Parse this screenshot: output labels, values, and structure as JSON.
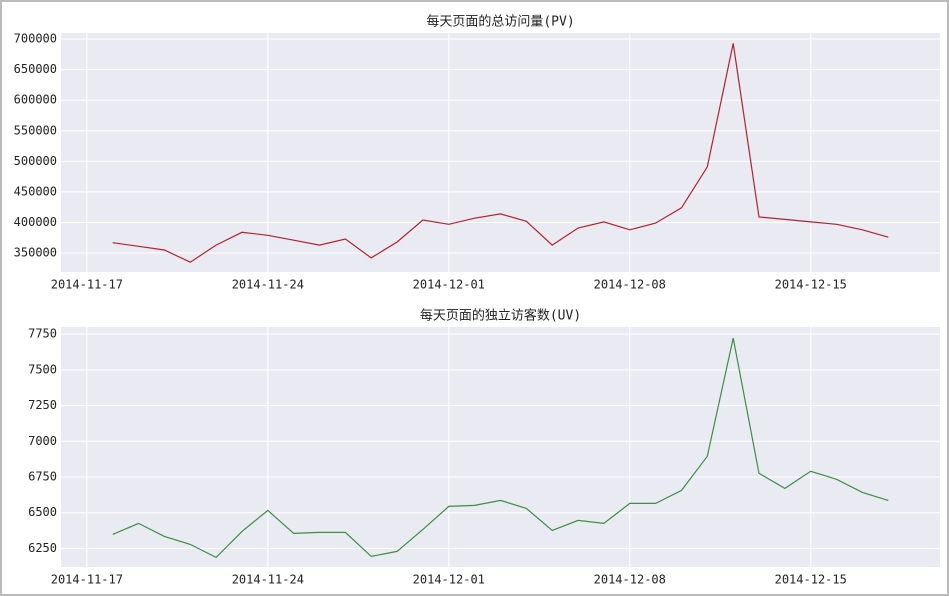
{
  "chart_data": [
    {
      "type": "line",
      "title": "每天页面的总访问量(PV)",
      "color": "#b2222e",
      "grid": true,
      "x": [
        "2014-11-18",
        "2014-11-19",
        "2014-11-20",
        "2014-11-21",
        "2014-11-22",
        "2014-11-23",
        "2014-11-24",
        "2014-11-25",
        "2014-11-26",
        "2014-11-27",
        "2014-11-28",
        "2014-11-29",
        "2014-11-30",
        "2014-12-01",
        "2014-12-02",
        "2014-12-03",
        "2014-12-04",
        "2014-12-05",
        "2014-12-06",
        "2014-12-07",
        "2014-12-08",
        "2014-12-09",
        "2014-12-10",
        "2014-12-11",
        "2014-12-12",
        "2014-12-13",
        "2014-12-14",
        "2014-12-15",
        "2014-12-16",
        "2014-12-17",
        "2014-12-18"
      ],
      "values": [
        367000,
        361000,
        355000,
        335000,
        363000,
        384000,
        379000,
        371000,
        363000,
        373000,
        342000,
        368000,
        404000,
        397000,
        407000,
        414000,
        402000,
        363000,
        391000,
        401000,
        388000,
        399000,
        424000,
        491000,
        693000,
        409000,
        405000,
        401000,
        397000,
        388000,
        376000
      ],
      "xlim": [
        "2014-11-16",
        "2014-12-20"
      ],
      "xticks": [
        "2014-11-17",
        "2014-11-24",
        "2014-12-01",
        "2014-12-08",
        "2014-12-15"
      ],
      "ylim": [
        319000,
        710000
      ],
      "yticks": [
        350000,
        400000,
        450000,
        500000,
        550000,
        600000,
        650000,
        700000
      ]
    },
    {
      "type": "line",
      "title": "每天页面的独立访客数(UV)",
      "color": "#3a8f45",
      "grid": true,
      "x": [
        "2014-11-18",
        "2014-11-19",
        "2014-11-20",
        "2014-11-21",
        "2014-11-22",
        "2014-11-23",
        "2014-11-24",
        "2014-11-25",
        "2014-11-26",
        "2014-11-27",
        "2014-11-28",
        "2014-11-29",
        "2014-11-30",
        "2014-12-01",
        "2014-12-02",
        "2014-12-03",
        "2014-12-04",
        "2014-12-05",
        "2014-12-06",
        "2014-12-07",
        "2014-12-08",
        "2014-12-09",
        "2014-12-10",
        "2014-12-11",
        "2014-12-12",
        "2014-12-13",
        "2014-12-14",
        "2014-12-15",
        "2014-12-16",
        "2014-12-17",
        "2014-12-18"
      ],
      "values": [
        6348,
        6425,
        6334,
        6278,
        6187,
        6369,
        6516,
        6355,
        6362,
        6362,
        6194,
        6229,
        6383,
        6544,
        6551,
        6586,
        6530,
        6376,
        6446,
        6425,
        6565,
        6565,
        6656,
        6895,
        7722,
        6776,
        6670,
        6790,
        6734,
        6642,
        6586
      ],
      "xlim": [
        "2014-11-16",
        "2014-12-20"
      ],
      "xticks": [
        "2014-11-17",
        "2014-11-24",
        "2014-12-01",
        "2014-12-08",
        "2014-12-15"
      ],
      "ylim": [
        6120,
        7800
      ],
      "yticks": [
        6250,
        6500,
        6750,
        7000,
        7250,
        7500,
        7750
      ]
    }
  ]
}
